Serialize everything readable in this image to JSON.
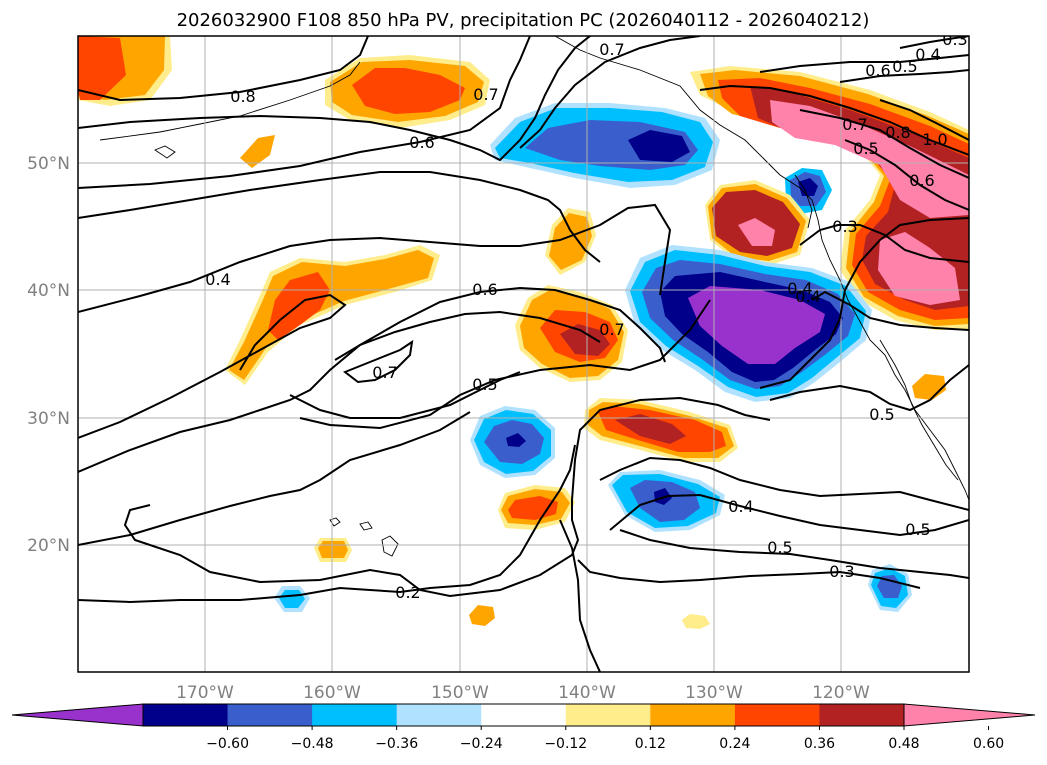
{
  "chart_data": {
    "type": "map-contour",
    "title": "2026032900 F108 850 hPa PV, precipitation PC (2026040112 - 2026040212)",
    "map": {
      "lon_range": [
        -180,
        -110
      ],
      "lat_range": [
        10,
        60
      ],
      "grid": true,
      "lon_ticks": [
        "170°W",
        "160°W",
        "150°W",
        "140°W",
        "130°W",
        "120°W"
      ],
      "lat_ticks": [
        "50°N",
        "40°N",
        "30°N",
        "20°N"
      ]
    },
    "colorbar": {
      "orientation": "horizontal",
      "extend": "both",
      "levels": [
        -0.72,
        -0.6,
        -0.48,
        -0.36,
        -0.24,
        -0.12,
        0.12,
        0.24,
        0.36,
        0.48,
        0.6,
        0.72
      ],
      "tick_labels": [
        "−0.60",
        "−0.48",
        "−0.36",
        "−0.24",
        "−0.12",
        "0.12",
        "0.24",
        "0.36",
        "0.48",
        "0.60"
      ],
      "colors": [
        "#9932cc",
        "#00008b",
        "#3a5fcd",
        "#00bfff",
        "#b0e2ff",
        "#ffffff",
        "#ffec8b",
        "#ffa500",
        "#ff4500",
        "#b22222",
        "#ff82ab"
      ]
    },
    "contour_labels": [
      "0.8",
      "0.7",
      "0.6",
      "0.4",
      "0.6",
      "0.7",
      "0.5",
      "0.7",
      "0.7",
      "0.4",
      "0.5",
      "0.4",
      "0.5",
      "0.3",
      "0.2",
      "0.3",
      "0.5",
      "0.5",
      "0.7",
      "0.8",
      "1.0",
      "0.6",
      "0.5",
      "0.6",
      "0.4",
      "0.3",
      "0.4"
    ]
  }
}
